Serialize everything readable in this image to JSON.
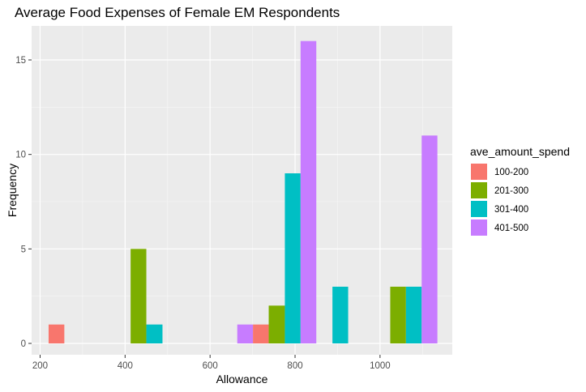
{
  "chart_data": {
    "type": "bar",
    "title": "Average Food Expenses of Female EM Respondents",
    "xlabel": "Allowance",
    "ylabel": "Frequency",
    "xlim": [
      180,
      1170
    ],
    "ylim": [
      -0.6,
      16.8
    ],
    "x_ticks": [
      200,
      400,
      600,
      800,
      1000
    ],
    "y_ticks": [
      0,
      5,
      10,
      15
    ],
    "grid": true,
    "legend": {
      "title": "ave_amount_spend",
      "position": "right",
      "entries": [
        {
          "name": "100-200",
          "color": "#F8766D"
        },
        {
          "name": "201-300",
          "color": "#7CAE00"
        },
        {
          "name": "301-400",
          "color": "#00BFC4"
        },
        {
          "name": "401-500",
          "color": "#C77CFF"
        }
      ]
    },
    "bars": [
      {
        "series": "100-200",
        "x_from": 220,
        "x_to": 257,
        "value": 1
      },
      {
        "series": "201-300",
        "x_from": 413,
        "x_to": 450,
        "value": 5
      },
      {
        "series": "301-400",
        "x_from": 450,
        "x_to": 488,
        "value": 1
      },
      {
        "series": "401-500",
        "x_from": 664,
        "x_to": 701,
        "value": 1
      },
      {
        "series": "100-200",
        "x_from": 701,
        "x_to": 738,
        "value": 1
      },
      {
        "series": "201-300",
        "x_from": 738,
        "x_to": 776,
        "value": 2
      },
      {
        "series": "301-400",
        "x_from": 776,
        "x_to": 813,
        "value": 9
      },
      {
        "series": "401-500",
        "x_from": 813,
        "x_to": 850,
        "value": 16
      },
      {
        "series": "301-400",
        "x_from": 888,
        "x_to": 925,
        "value": 3
      },
      {
        "series": "201-300",
        "x_from": 1024,
        "x_to": 1061,
        "value": 3
      },
      {
        "series": "301-400",
        "x_from": 1061,
        "x_to": 1098,
        "value": 3
      },
      {
        "series": "401-500",
        "x_from": 1098,
        "x_to": 1135,
        "value": 11
      }
    ]
  }
}
